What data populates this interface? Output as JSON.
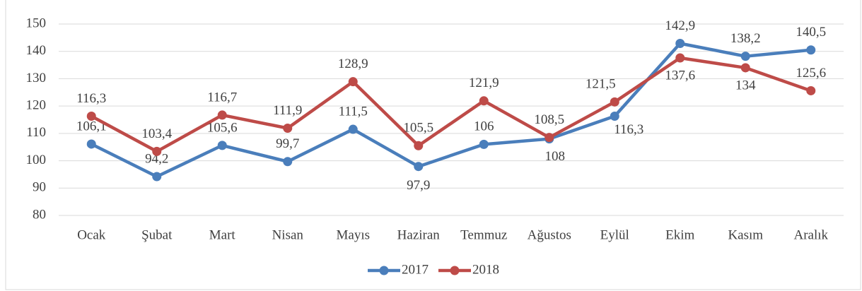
{
  "chart_data": {
    "type": "line",
    "categories": [
      "Ocak",
      "Şubat",
      "Mart",
      "Nisan",
      "Mayıs",
      "Haziran",
      "Temmuz",
      "Ağustos",
      "Eylül",
      "Ekim",
      "Kasım",
      "Aralık"
    ],
    "series": [
      {
        "name": "2017",
        "color": "#4a7ebb",
        "values": [
          106.1,
          94.2,
          105.6,
          99.7,
          111.5,
          97.9,
          106,
          108,
          116.3,
          142.9,
          138.2,
          140.5
        ],
        "value_labels": [
          "106,1",
          "94,2",
          "105,6",
          "99,7",
          "111,5",
          "97,9",
          "106",
          "108",
          "116,3",
          "142,9",
          "138,2",
          "140,5"
        ]
      },
      {
        "name": "2018",
        "color": "#be4b48",
        "values": [
          116.3,
          103.4,
          116.7,
          111.9,
          128.9,
          105.5,
          121.9,
          108.5,
          121.5,
          137.6,
          134,
          125.6
        ],
        "value_labels": [
          "116,3",
          "103,4",
          "116,7",
          "111,9",
          "128,9",
          "105,5",
          "121,9",
          "108,5",
          "121,5",
          "137,6",
          "134",
          "125,6"
        ]
      }
    ],
    "ylim": [
      80,
      150
    ],
    "yticks": [
      80,
      90,
      100,
      110,
      120,
      130,
      140,
      150
    ],
    "grid": true,
    "legend": "bottom"
  }
}
